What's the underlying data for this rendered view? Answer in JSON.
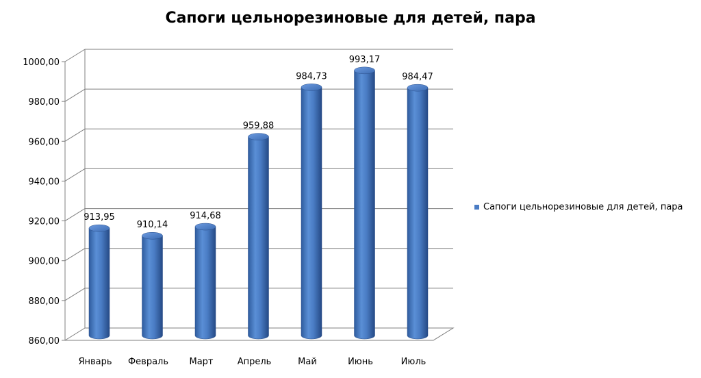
{
  "chart_data": {
    "type": "bar",
    "title": "Сапоги цельнорезиновые  для детей, пара",
    "categories": [
      "Январь",
      "Февраль",
      "Март",
      "Апрель",
      "Май",
      "Июнь",
      "Июль"
    ],
    "series": [
      {
        "name": "Сапоги цельнорезиновые для детей, пара",
        "values": [
          913.95,
          910.14,
          914.68,
          959.88,
          984.73,
          993.17,
          984.47
        ],
        "value_labels": [
          "913,95",
          "910,14",
          "914,68",
          "959,88",
          "984,73",
          "993,17",
          "984,47"
        ]
      }
    ],
    "ylim": [
      860,
      1000
    ],
    "y_ticks": [
      "860,00",
      "880,00",
      "900,00",
      "920,00",
      "940,00",
      "960,00",
      "980,00",
      "1000,00"
    ],
    "grid": true,
    "legend_position": "right",
    "bar_shape": "3d-cylinder",
    "bar_color": "#4a7cc4",
    "grid_color": "#7f7f7f"
  }
}
